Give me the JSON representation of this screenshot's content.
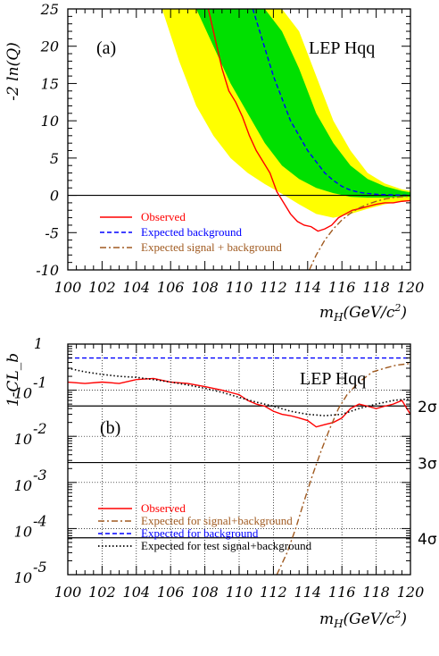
{
  "chart_data": [
    {
      "type": "line",
      "panel_label": "(a)",
      "experiment_label": "LEP Hqq",
      "ylabel": "-2 ln(Q)",
      "xlabel": "m_H(GeV/c^2)",
      "xlim": [
        100,
        120
      ],
      "ylim": [
        -10,
        25
      ],
      "xticks": [
        100,
        102,
        104,
        106,
        108,
        110,
        112,
        114,
        116,
        118,
        120
      ],
      "yticks": [
        -10,
        -5,
        0,
        5,
        10,
        15,
        20,
        25
      ],
      "grid": false,
      "legend_position": "bottom-left",
      "legend": [
        "Observed",
        "Expected background",
        "Expected signal + background"
      ],
      "band_2sigma_color": "#ffff00",
      "band_1sigma_color": "#00e000",
      "band_2sigma": {
        "x": [
          105.5,
          106.5,
          107.5,
          108.5,
          109.5,
          110.5,
          111.5,
          112.5,
          113.5,
          114.5,
          115.5,
          116.5,
          117.5,
          118.5,
          119.5,
          120
        ],
        "upper": [
          25,
          25,
          25,
          25,
          25,
          25,
          25,
          25,
          22,
          16,
          10,
          6,
          3,
          1.6,
          0.8,
          0.6
        ],
        "lower": [
          25,
          18,
          12,
          8,
          5,
          3,
          1.5,
          0.2,
          -1.2,
          -2.5,
          -3,
          -2.5,
          -1.8,
          -1.2,
          -0.8,
          -0.6
        ]
      },
      "band_1sigma": {
        "x": [
          107.5,
          108.5,
          109.5,
          110.5,
          111.5,
          112.5,
          113.5,
          114.5,
          115.5,
          116.5,
          117.5,
          118.5,
          119.5,
          120
        ],
        "upper": [
          25,
          25,
          25,
          25,
          25,
          22,
          17,
          11,
          7,
          4,
          2.2,
          1.2,
          0.6,
          0.4
        ],
        "lower": [
          25,
          20,
          15,
          11,
          7,
          4,
          2.2,
          1,
          0.3,
          -0.2,
          -0.3,
          -0.3,
          -0.2,
          -0.2
        ]
      },
      "series": [
        {
          "name": "Observed",
          "color": "#ff0000",
          "dash": "solid",
          "x": [
            108.2,
            108.6,
            109,
            109.4,
            109.8,
            110.2,
            110.6,
            111,
            111.4,
            111.8,
            112.2,
            112.6,
            113,
            113.4,
            113.8,
            114.2,
            114.6,
            115,
            115.4,
            115.8,
            116.2,
            116.6,
            117,
            117.5,
            118,
            118.5,
            119,
            119.5,
            120
          ],
          "y": [
            25,
            21,
            17,
            14,
            12.5,
            10.5,
            8,
            6,
            4.5,
            3,
            0.5,
            -1,
            -2.5,
            -3.5,
            -4,
            -4.2,
            -4.8,
            -4.5,
            -4,
            -3,
            -2.5,
            -2,
            -1.8,
            -1.5,
            -1.2,
            -1,
            -1,
            -0.8,
            -0.7
          ]
        },
        {
          "name": "Expected background",
          "color": "#0000ff",
          "dash": "dashed",
          "x": [
            110.8,
            111.2,
            111.6,
            112,
            112.5,
            113,
            113.5,
            114,
            114.5,
            115,
            115.5,
            116,
            116.5,
            117,
            117.5,
            118,
            119,
            120
          ],
          "y": [
            25,
            22,
            19,
            16,
            13,
            10,
            8,
            6,
            4.5,
            3,
            2,
            1.2,
            0.7,
            0.4,
            0.25,
            0.15,
            0.05,
            0
          ]
        },
        {
          "name": "Expected signal + background",
          "color": "#a05a20",
          "dash": "dashdot",
          "x": [
            114.1,
            114.5,
            115,
            115.5,
            116,
            116.5,
            117,
            117.5,
            118,
            118.5,
            119,
            119.5,
            120
          ],
          "y": [
            -10,
            -8,
            -6,
            -4.5,
            -3.3,
            -2.4,
            -1.7,
            -1.2,
            -0.8,
            -0.5,
            -0.3,
            -0.2,
            -0.1
          ]
        }
      ]
    },
    {
      "type": "line",
      "panel_label": "(b)",
      "experiment_label": "LEP Hqq",
      "ylabel": "1-CL_b",
      "xlabel": "m_H(GeV/c^2)",
      "xlim": [
        100,
        120
      ],
      "ylim": [
        1e-05,
        1
      ],
      "yscale": "log",
      "xticks": [
        100,
        102,
        104,
        106,
        108,
        110,
        112,
        114,
        116,
        118,
        120
      ],
      "ytick_exponents": [
        0,
        -1,
        -2,
        -3,
        -4,
        -5
      ],
      "grid": true,
      "legend_position": "bottom-left",
      "legend": [
        "Observed",
        "Expected for signal+background",
        "Expected for background",
        "Expected for test signal+background"
      ],
      "sigma_lines": [
        {
          "label": "2σ",
          "value": 0.0455
        },
        {
          "label": "3σ",
          "value": 0.0027
        },
        {
          "label": "4σ",
          "value": 6.3e-05
        }
      ],
      "series": [
        {
          "name": "Observed",
          "color": "#ff0000",
          "dash": "solid",
          "x": [
            100,
            101,
            102,
            103,
            104,
            105,
            106,
            107,
            108,
            109,
            110,
            110.5,
            111,
            111.5,
            112,
            112.5,
            113,
            113.5,
            114,
            114.5,
            115,
            115.5,
            116,
            116.5,
            117,
            117.5,
            118,
            118.5,
            119,
            119.5,
            120
          ],
          "y": [
            0.15,
            0.14,
            0.15,
            0.14,
            0.17,
            0.18,
            0.15,
            0.14,
            0.12,
            0.1,
            0.08,
            0.06,
            0.05,
            0.045,
            0.035,
            0.03,
            0.028,
            0.025,
            0.022,
            0.016,
            0.018,
            0.02,
            0.025,
            0.04,
            0.05,
            0.045,
            0.04,
            0.045,
            0.05,
            0.06,
            0.03
          ]
        },
        {
          "name": "Expected for signal+background",
          "color": "#a05a20",
          "dash": "dashdot",
          "x": [
            112.2,
            112.8,
            113.3,
            113.8,
            114.3,
            114.8,
            115.3,
            115.8,
            116.3,
            117,
            117.8,
            118.5,
            119.2,
            120
          ],
          "y": [
            1e-05,
            3e-05,
            0.0001,
            0.0004,
            0.0015,
            0.005,
            0.015,
            0.04,
            0.08,
            0.15,
            0.25,
            0.3,
            0.35,
            0.38
          ]
        },
        {
          "name": "Expected for background",
          "color": "#0000ff",
          "dash": "dashed",
          "x": [
            100,
            120
          ],
          "y": [
            0.5,
            0.5
          ]
        },
        {
          "name": "Expected for test signal+background",
          "color": "#000000",
          "dash": "dotted",
          "x": [
            100,
            101,
            102,
            103,
            104,
            105,
            106,
            107,
            108,
            109,
            110,
            111,
            112,
            113,
            114,
            115,
            116,
            117,
            118,
            119,
            120
          ],
          "y": [
            0.3,
            0.25,
            0.22,
            0.2,
            0.19,
            0.17,
            0.15,
            0.13,
            0.11,
            0.09,
            0.07,
            0.055,
            0.045,
            0.035,
            0.03,
            0.028,
            0.03,
            0.04,
            0.05,
            0.06,
            0.065
          ]
        }
      ]
    }
  ]
}
